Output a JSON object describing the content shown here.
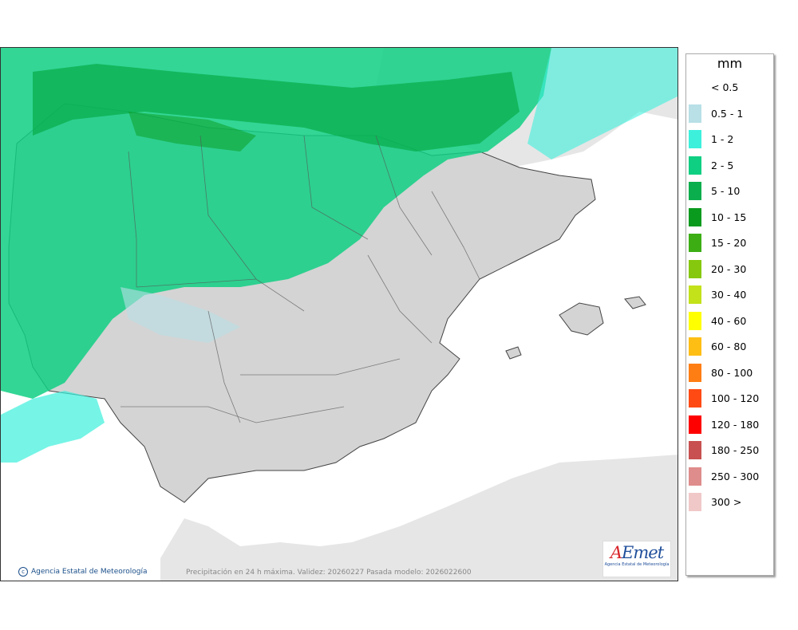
{
  "legend": {
    "unit": "mm",
    "items": [
      {
        "label": "< 0.5",
        "color": "#ffffff"
      },
      {
        "label": "0.5 - 1",
        "color": "#b8e0e6"
      },
      {
        "label": "1 - 2",
        "color": "#3cf0dc"
      },
      {
        "label": "2 - 5",
        "color": "#0fcf82"
      },
      {
        "label": "5 - 10",
        "color": "#0aae4c"
      },
      {
        "label": "10 - 15",
        "color": "#0a9a1e"
      },
      {
        "label": "15 - 20",
        "color": "#3cae14"
      },
      {
        "label": "20 - 30",
        "color": "#86c80e"
      },
      {
        "label": "30 - 40",
        "color": "#c3e21a"
      },
      {
        "label": "40 - 60",
        "color": "#ffff00"
      },
      {
        "label": "60 - 80",
        "color": "#ffbe14"
      },
      {
        "label": "80 - 100",
        "color": "#ff7e14"
      },
      {
        "label": "100 - 120",
        "color": "#ff4a14"
      },
      {
        "label": "120 - 180",
        "color": "#ff0000"
      },
      {
        "label": "180 - 250",
        "color": "#c85050"
      },
      {
        "label": "250 - 300",
        "color": "#de8c8c"
      },
      {
        "label": "300 >",
        "color": "#f0c8c8"
      }
    ]
  },
  "footer": {
    "copyright": "Agencia Estatal de Meteorología",
    "validity": "Precipitación en 24 h máxima. Validez: 20260227 Pasada modelo: 2026022600"
  },
  "logo": {
    "word_a": "A",
    "word_rest": "Emet",
    "subtitle": "Agencia Estatal de Meteorología"
  }
}
